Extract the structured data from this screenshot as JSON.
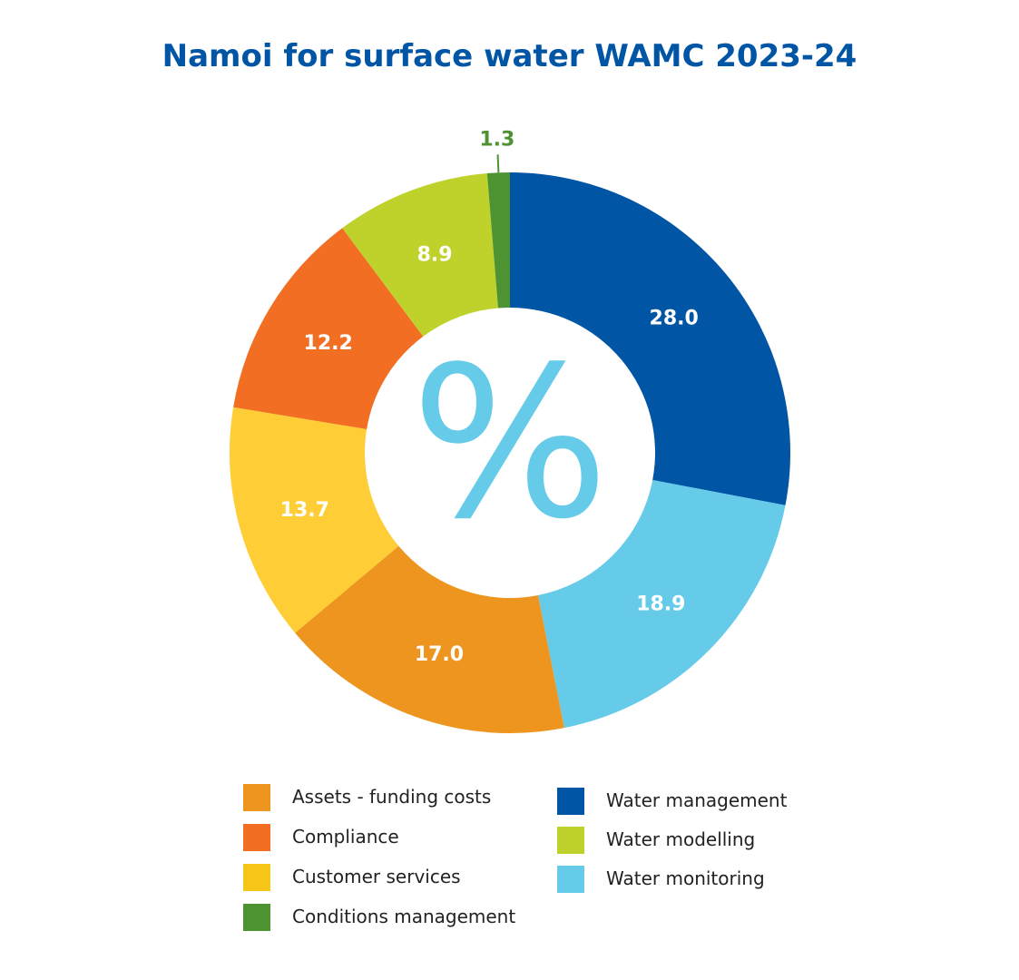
{
  "chart_data": {
    "type": "pie",
    "title": "Namoi for surface water WAMC 2023-24",
    "center_symbol": "%",
    "categories": [
      "Water management",
      "Water monitoring",
      "Assets - funding costs",
      "Customer services",
      "Compliance",
      "Water modelling",
      "Conditions management"
    ],
    "values": [
      28.0,
      18.9,
      17.0,
      13.7,
      12.2,
      8.9,
      1.3
    ],
    "value_labels": [
      "28.0",
      "18.9",
      "17.0",
      "13.7",
      "12.2",
      "8.9",
      "1.3"
    ],
    "colors": [
      "#0055A5",
      "#66CBE9",
      "#ED951F",
      "#FFCD35",
      "#F26E23",
      "#BFD22B",
      "#4E9332"
    ],
    "legend": {
      "left_column": [
        {
          "label": "Assets - funding costs",
          "color": "#ED951F"
        },
        {
          "label": "Compliance",
          "color": "#F26E23"
        },
        {
          "label": "Customer services",
          "color": "#F5C518"
        },
        {
          "label": "Conditions management",
          "color": "#4E9332"
        }
      ],
      "right_column": [
        {
          "label": "Water management",
          "color": "#0055A5"
        },
        {
          "label": "Water modelling",
          "color": "#BFD22B"
        },
        {
          "label": "Water monitoring",
          "color": "#66CBE9"
        }
      ]
    },
    "legend_placement": "bottom",
    "grid": false
  }
}
